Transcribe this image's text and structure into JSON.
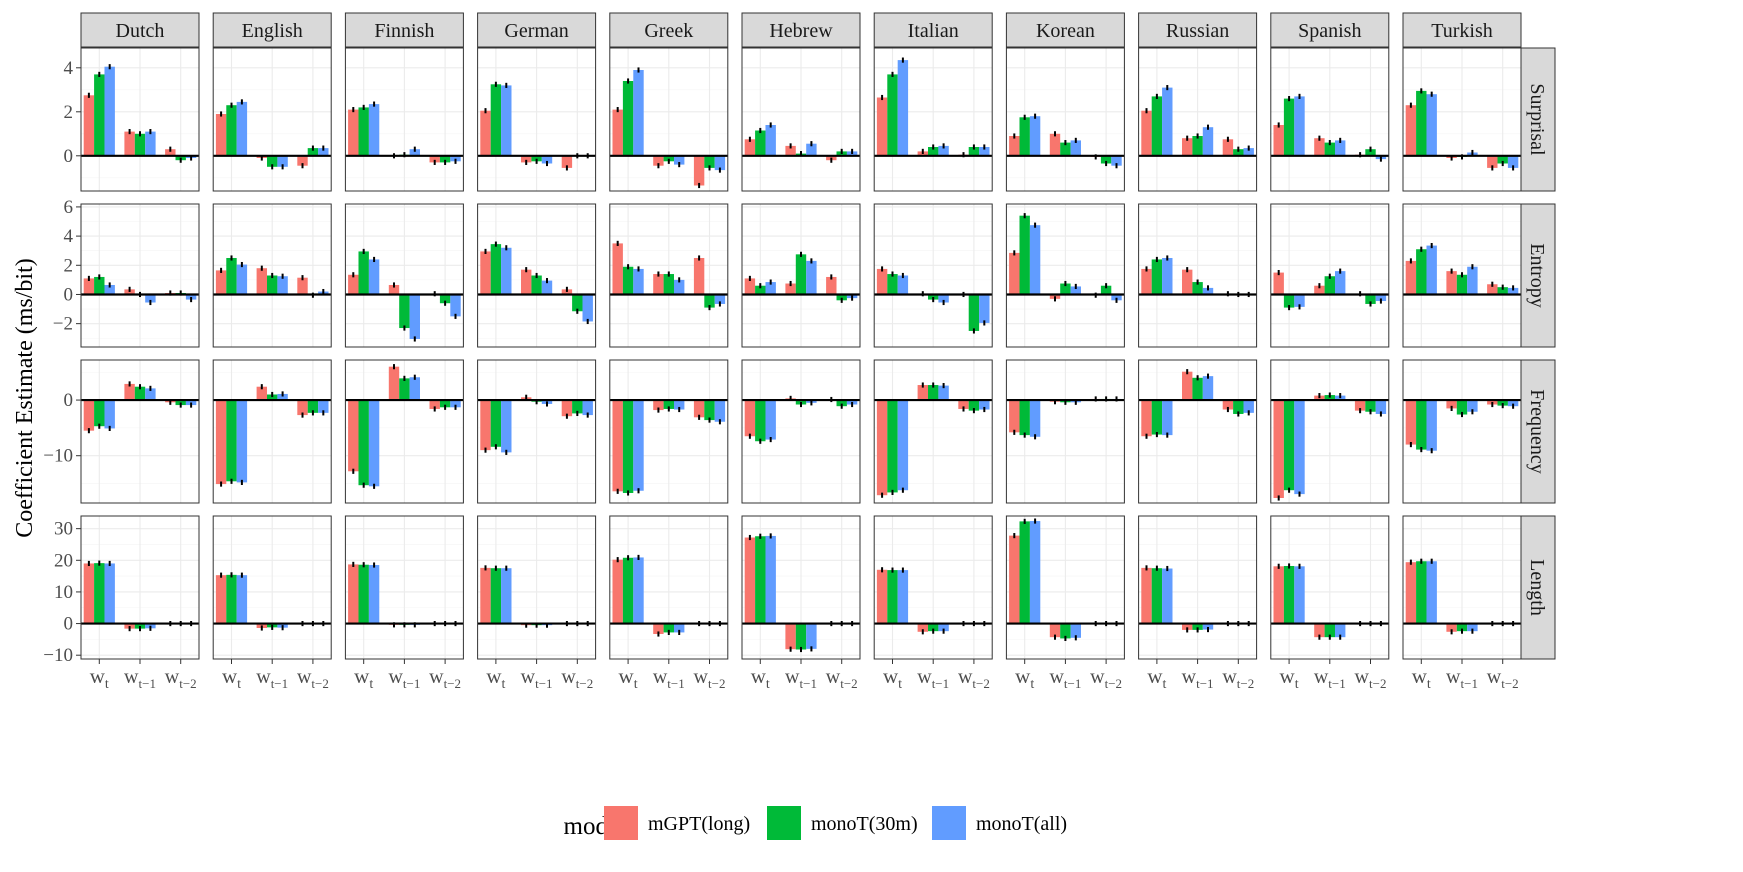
{
  "chart_data": {
    "type": "bar",
    "ylabel": "Coefficient Estimate (ms/bit)",
    "languages": [
      "Dutch",
      "English",
      "Finnish",
      "German",
      "Greek",
      "Hebrew",
      "Italian",
      "Korean",
      "Russian",
      "Spanish",
      "Turkish"
    ],
    "positions": [
      "w_t",
      "w_t-1",
      "w_t-2"
    ],
    "legend": {
      "title": "model",
      "items": [
        {
          "name": "mGPT(long)",
          "color": "#F8766D"
        },
        {
          "name": "monoT(30m)",
          "color": "#00BA38"
        },
        {
          "name": "monoT(all)",
          "color": "#619CFF"
        }
      ],
      "placement": "bottom"
    },
    "rows": [
      {
        "name": "Surprisal",
        "ylim": [
          -1.6,
          4.9
        ],
        "yticks": [
          0,
          2,
          4
        ],
        "values": {
          "Dutch": [
            [
              2.75,
              3.7,
              4.05
            ],
            [
              1.1,
              1.0,
              1.1
            ],
            [
              0.3,
              -0.2,
              -0.1
            ]
          ],
          "English": [
            [
              1.9,
              2.3,
              2.45
            ],
            [
              -0.1,
              -0.5,
              -0.5
            ],
            [
              -0.45,
              0.35,
              0.35
            ]
          ],
          "Finnish": [
            [
              2.1,
              2.2,
              2.35
            ],
            [
              0.0,
              0.05,
              0.3
            ],
            [
              -0.3,
              -0.3,
              -0.25
            ]
          ],
          "German": [
            [
              2.05,
              3.25,
              3.2
            ],
            [
              -0.3,
              -0.25,
              -0.35
            ],
            [
              -0.55,
              0.0,
              0.0
            ]
          ],
          "Greek": [
            [
              2.1,
              3.4,
              3.9
            ],
            [
              -0.45,
              -0.25,
              -0.4
            ],
            [
              -1.35,
              -0.55,
              -0.65
            ]
          ],
          "Hebrew": [
            [
              0.75,
              1.15,
              1.4
            ],
            [
              0.45,
              0.1,
              0.55
            ],
            [
              -0.2,
              0.2,
              0.2
            ]
          ],
          "Italian": [
            [
              2.65,
              3.7,
              4.35
            ],
            [
              0.2,
              0.4,
              0.45
            ],
            [
              0.05,
              0.4,
              0.4
            ]
          ],
          "Korean": [
            [
              0.9,
              1.75,
              1.8
            ],
            [
              1.0,
              0.6,
              0.7
            ],
            [
              -0.05,
              -0.35,
              -0.45
            ]
          ],
          "Russian": [
            [
              2.05,
              2.7,
              3.1
            ],
            [
              0.8,
              0.9,
              1.3
            ],
            [
              0.75,
              0.3,
              0.35
            ]
          ],
          "Spanish": [
            [
              1.4,
              2.6,
              2.7
            ],
            [
              0.8,
              0.6,
              0.7
            ],
            [
              0.05,
              0.3,
              -0.15
            ]
          ],
          "Turkish": [
            [
              2.3,
              2.95,
              2.8
            ],
            [
              -0.1,
              -0.05,
              0.15
            ],
            [
              -0.55,
              -0.35,
              -0.55
            ]
          ]
        }
      },
      {
        "name": "Entropy",
        "ylim": [
          -3.6,
          6.2
        ],
        "yticks": [
          -2,
          0,
          2,
          4,
          6
        ],
        "values": {
          "Dutch": [
            [
              1.1,
              1.2,
              0.65
            ],
            [
              0.35,
              0.0,
              -0.55
            ],
            [
              0.1,
              0.1,
              -0.35
            ]
          ],
          "English": [
            [
              1.65,
              2.5,
              2.05
            ],
            [
              1.8,
              1.3,
              1.25
            ],
            [
              1.15,
              -0.05,
              0.2
            ]
          ],
          "Finnish": [
            [
              1.35,
              2.95,
              2.4
            ],
            [
              0.65,
              -2.3,
              -3.05
            ],
            [
              0.05,
              -0.6,
              -1.5
            ]
          ],
          "German": [
            [
              2.95,
              3.45,
              3.2
            ],
            [
              1.7,
              1.3,
              0.95
            ],
            [
              0.35,
              -1.15,
              -1.85
            ]
          ],
          "Greek": [
            [
              3.5,
              1.9,
              1.75
            ],
            [
              1.4,
              1.4,
              1.0
            ],
            [
              2.5,
              -0.9,
              -0.65
            ]
          ],
          "Hebrew": [
            [
              1.1,
              0.6,
              0.85
            ],
            [
              0.75,
              2.75,
              2.3
            ],
            [
              1.2,
              -0.4,
              -0.25
            ]
          ],
          "Italian": [
            [
              1.75,
              1.4,
              1.3
            ],
            [
              0.05,
              -0.35,
              -0.55
            ],
            [
              0.0,
              -2.5,
              -1.95
            ]
          ],
          "Korean": [
            [
              2.85,
              5.4,
              4.75
            ],
            [
              -0.3,
              0.75,
              0.55
            ],
            [
              -0.05,
              0.6,
              -0.4
            ]
          ],
          "Russian": [
            [
              1.75,
              2.4,
              2.5
            ],
            [
              1.7,
              0.85,
              0.45
            ],
            [
              0.05,
              0.0,
              0.0
            ]
          ],
          "Spanish": [
            [
              1.5,
              -0.9,
              -0.85
            ],
            [
              0.6,
              1.25,
              1.6
            ],
            [
              0.05,
              -0.65,
              -0.45
            ]
          ],
          "Turkish": [
            [
              2.3,
              3.1,
              3.35
            ],
            [
              1.6,
              1.35,
              1.9
            ],
            [
              0.7,
              0.5,
              0.45
            ]
          ]
        }
      },
      {
        "name": "Frequency",
        "ylim": [
          -18.5,
          7.2
        ],
        "yticks": [
          -10,
          0
        ],
        "values": {
          "Dutch": [
            [
              -5.5,
              -4.7,
              -5.1
            ],
            [
              2.9,
              2.4,
              2.1
            ],
            [
              -0.4,
              -0.9,
              -0.9
            ]
          ],
          "English": [
            [
              -15.1,
              -14.6,
              -14.8
            ],
            [
              2.4,
              1.0,
              1.1
            ],
            [
              -2.7,
              -2.3,
              -2.3
            ]
          ],
          "Finnish": [
            [
              -12.8,
              -15.3,
              -15.5
            ],
            [
              6.0,
              3.9,
              4.1
            ],
            [
              -1.6,
              -1.3,
              -1.3
            ]
          ],
          "German": [
            [
              -9.0,
              -8.4,
              -9.4
            ],
            [
              0.5,
              -0.3,
              -0.7
            ],
            [
              -2.9,
              -2.4,
              -2.7
            ]
          ],
          "Greek": [
            [
              -16.4,
              -16.7,
              -16.3
            ],
            [
              -1.8,
              -1.6,
              -1.7
            ],
            [
              -3.1,
              -3.6,
              -3.9
            ]
          ],
          "Hebrew": [
            [
              -6.5,
              -7.4,
              -7.1
            ],
            [
              0.3,
              -0.8,
              -0.5
            ],
            [
              0.1,
              -1.1,
              -0.8
            ]
          ],
          "Italian": [
            [
              -17.1,
              -16.6,
              -16.2
            ],
            [
              2.7,
              2.7,
              2.6
            ],
            [
              -1.6,
              -1.9,
              -1.7
            ]
          ],
          "Korean": [
            [
              -5.8,
              -6.3,
              -6.6
            ],
            [
              -0.3,
              -0.4,
              -0.4
            ],
            [
              0.2,
              0.2,
              0.2
            ]
          ],
          "Russian": [
            [
              -6.5,
              -6.2,
              -6.3
            ],
            [
              5.1,
              4.0,
              4.3
            ],
            [
              -1.7,
              -2.5,
              -2.3
            ]
          ],
          "Spanish": [
            [
              -17.6,
              -16.2,
              -16.9
            ],
            [
              0.8,
              0.9,
              0.8
            ],
            [
              -1.9,
              -2.1,
              -2.5
            ]
          ],
          "Turkish": [
            [
              -8.0,
              -8.9,
              -9.1
            ],
            [
              -1.5,
              -2.6,
              -2.1
            ],
            [
              -0.8,
              -1.0,
              -1.1
            ]
          ]
        }
      },
      {
        "name": "Length",
        "ylim": [
          -11.2,
          34
        ],
        "yticks": [
          -10,
          0,
          10,
          20,
          30
        ],
        "values": {
          "Dutch": [
            [
              19.0,
              19.1,
              19.0
            ],
            [
              -1.6,
              -1.6,
              -1.5
            ],
            [
              0.0,
              0.0,
              0.0
            ]
          ],
          "English": [
            [
              15.3,
              15.4,
              15.3
            ],
            [
              -1.4,
              -1.2,
              -1.3
            ],
            [
              0.0,
              0.0,
              0.0
            ]
          ],
          "Finnish": [
            [
              18.7,
              18.6,
              18.5
            ],
            [
              -0.4,
              -0.4,
              -0.4
            ],
            [
              0.0,
              0.0,
              0.0
            ]
          ],
          "German": [
            [
              17.6,
              17.5,
              17.5
            ],
            [
              -0.5,
              -0.5,
              -0.5
            ],
            [
              0.0,
              0.0,
              0.0
            ]
          ],
          "Greek": [
            [
              20.2,
              20.8,
              20.9
            ],
            [
              -3.3,
              -2.8,
              -2.8
            ],
            [
              0.0,
              0.0,
              0.0
            ]
          ],
          "Hebrew": [
            [
              27.2,
              27.6,
              27.7
            ],
            [
              -8.1,
              -8.2,
              -8.0
            ],
            [
              0.0,
              0.0,
              0.0
            ]
          ],
          "Italian": [
            [
              17.0,
              16.9,
              16.9
            ],
            [
              -2.6,
              -2.4,
              -2.4
            ],
            [
              0.0,
              0.0,
              0.0
            ]
          ],
          "Korean": [
            [
              27.8,
              32.3,
              32.4
            ],
            [
              -4.3,
              -4.7,
              -4.5
            ],
            [
              0.0,
              0.0,
              0.0
            ]
          ],
          "Russian": [
            [
              17.6,
              17.5,
              17.4
            ],
            [
              -2.0,
              -2.0,
              -1.9
            ],
            [
              0.0,
              0.0,
              0.0
            ]
          ],
          "Spanish": [
            [
              18.1,
              18.2,
              18.1
            ],
            [
              -4.3,
              -4.3,
              -4.3
            ],
            [
              0.0,
              0.0,
              0.0
            ]
          ],
          "Turkish": [
            [
              19.4,
              19.7,
              19.7
            ],
            [
              -2.6,
              -2.4,
              -2.4
            ],
            [
              0.0,
              0.0,
              0.0
            ]
          ]
        }
      }
    ]
  }
}
